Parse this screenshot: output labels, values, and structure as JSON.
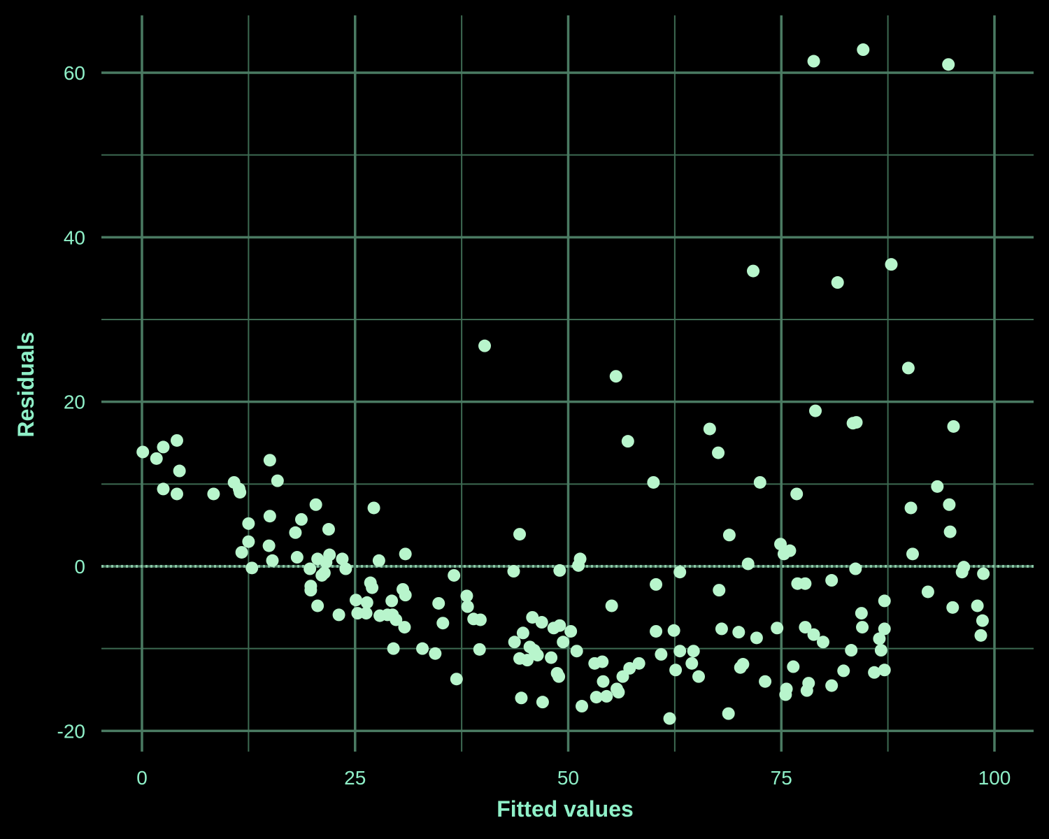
{
  "chart_data": {
    "type": "scatter",
    "title": "",
    "xlabel": "Fitted values",
    "ylabel": "Residuals",
    "xlim": [
      -4.5,
      105
    ],
    "ylim": [
      -22.5,
      67
    ],
    "x_ticks": [
      0,
      25,
      50,
      75,
      100
    ],
    "x_tick_labels": [
      "0",
      "25",
      "50",
      "75",
      "100"
    ],
    "y_ticks": [
      -20,
      0,
      20,
      40,
      60
    ],
    "y_tick_labels": [
      "-20",
      "0",
      "20",
      "40",
      "60"
    ],
    "grid": true,
    "reference_line": {
      "y": 0,
      "style": "dotted"
    },
    "colors": {
      "background": "#000000",
      "grid_major": "#4a7a62",
      "grid_minor": "#3d6a52",
      "points": "#b8f5cc",
      "text": "#8ff0c8",
      "zero_line": "#8ac7a6"
    },
    "points": [
      [
        0.1,
        13.9
      ],
      [
        1.7,
        13.1
      ],
      [
        2.5,
        14.5
      ],
      [
        4.1,
        15.3
      ],
      [
        2.5,
        9.4
      ],
      [
        4.1,
        8.8
      ],
      [
        4.4,
        11.6
      ],
      [
        8.4,
        8.8
      ],
      [
        10.8,
        10.2
      ],
      [
        11.4,
        9.4
      ],
      [
        11.5,
        9.0
      ],
      [
        15.0,
        12.9
      ],
      [
        15.9,
        10.4
      ],
      [
        11.7,
        1.7
      ],
      [
        12.5,
        5.2
      ],
      [
        12.5,
        3.0
      ],
      [
        12.9,
        -0.2
      ],
      [
        15.0,
        6.1
      ],
      [
        14.9,
        2.5
      ],
      [
        15.3,
        0.7
      ],
      [
        18.0,
        4.1
      ],
      [
        18.2,
        1.1
      ],
      [
        18.7,
        5.7
      ],
      [
        19.7,
        -0.3
      ],
      [
        19.8,
        -2.4
      ],
      [
        19.8,
        -2.9
      ],
      [
        20.4,
        7.5
      ],
      [
        20.6,
        0.9
      ],
      [
        20.6,
        -4.8
      ],
      [
        21.1,
        -1.1
      ],
      [
        21.4,
        -0.8
      ],
      [
        21.6,
        0.5
      ],
      [
        21.9,
        4.5
      ],
      [
        22.0,
        1.4
      ],
      [
        23.1,
        -5.9
      ],
      [
        23.5,
        0.9
      ],
      [
        23.9,
        -0.3
      ],
      [
        25.1,
        -4.1
      ],
      [
        25.3,
        -5.7
      ],
      [
        26.3,
        -5.7
      ],
      [
        26.4,
        -4.4
      ],
      [
        26.8,
        -2.0
      ],
      [
        27.0,
        -2.6
      ],
      [
        27.2,
        7.1
      ],
      [
        27.8,
        0.7
      ],
      [
        27.9,
        -6.0
      ],
      [
        28.8,
        -5.9
      ],
      [
        29.3,
        -4.2
      ],
      [
        29.4,
        -5.9
      ],
      [
        29.5,
        -10.0
      ],
      [
        29.8,
        -6.5
      ],
      [
        30.6,
        -2.8
      ],
      [
        30.9,
        -3.5
      ],
      [
        30.8,
        -7.4
      ],
      [
        30.9,
        1.5
      ],
      [
        32.9,
        -10.0
      ],
      [
        34.4,
        -10.6
      ],
      [
        34.8,
        -4.5
      ],
      [
        35.3,
        -6.9
      ],
      [
        36.6,
        -1.1
      ],
      [
        36.9,
        -13.7
      ],
      [
        38.1,
        -3.6
      ],
      [
        38.2,
        -4.9
      ],
      [
        38.9,
        -6.4
      ],
      [
        39.6,
        -10.1
      ],
      [
        39.7,
        -6.5
      ],
      [
        40.2,
        26.8
      ],
      [
        43.6,
        -0.6
      ],
      [
        43.7,
        -9.2
      ],
      [
        44.3,
        -11.2
      ],
      [
        44.3,
        3.9
      ],
      [
        44.5,
        -16.0
      ],
      [
        44.7,
        -8.1
      ],
      [
        45.2,
        -11.4
      ],
      [
        45.5,
        -9.8
      ],
      [
        45.8,
        -6.2
      ],
      [
        46.0,
        -10.2
      ],
      [
        46.4,
        -10.8
      ],
      [
        46.9,
        -6.8
      ],
      [
        47.0,
        -16.5
      ],
      [
        48.0,
        -11.1
      ],
      [
        48.3,
        -7.5
      ],
      [
        48.7,
        -13.0
      ],
      [
        49.0,
        -7.2
      ],
      [
        48.9,
        -13.4
      ],
      [
        49.0,
        -0.5
      ],
      [
        49.4,
        -9.2
      ],
      [
        50.3,
        -7.9
      ],
      [
        51.0,
        -10.3
      ],
      [
        51.2,
        0.1
      ],
      [
        51.4,
        0.9
      ],
      [
        51.6,
        -17.0
      ],
      [
        53.1,
        -11.8
      ],
      [
        53.3,
        -15.9
      ],
      [
        54.0,
        -11.6
      ],
      [
        54.1,
        -14.0
      ],
      [
        54.5,
        -15.8
      ],
      [
        55.1,
        -4.8
      ],
      [
        55.6,
        23.1
      ],
      [
        55.7,
        -14.9
      ],
      [
        55.9,
        -15.3
      ],
      [
        56.4,
        -13.4
      ],
      [
        57.0,
        15.2
      ],
      [
        57.2,
        -12.4
      ],
      [
        58.3,
        -11.8
      ],
      [
        60.0,
        10.2
      ],
      [
        60.3,
        -2.2
      ],
      [
        60.3,
        -7.9
      ],
      [
        60.9,
        -10.7
      ],
      [
        61.9,
        -18.5
      ],
      [
        62.4,
        -7.8
      ],
      [
        62.6,
        -12.6
      ],
      [
        63.1,
        -10.3
      ],
      [
        63.1,
        -0.7
      ],
      [
        64.5,
        -11.8
      ],
      [
        64.7,
        -10.3
      ],
      [
        65.3,
        -13.4
      ],
      [
        66.6,
        16.7
      ],
      [
        67.6,
        13.8
      ],
      [
        67.7,
        -2.9
      ],
      [
        68.0,
        -7.6
      ],
      [
        68.8,
        -17.9
      ],
      [
        68.9,
        3.8
      ],
      [
        70.0,
        -8.0
      ],
      [
        70.2,
        -12.3
      ],
      [
        70.5,
        -11.9
      ],
      [
        71.1,
        0.3
      ],
      [
        71.7,
        35.9
      ],
      [
        72.1,
        -8.7
      ],
      [
        72.5,
        10.2
      ],
      [
        73.1,
        -14.0
      ],
      [
        74.5,
        -7.5
      ],
      [
        74.9,
        2.7
      ],
      [
        75.3,
        1.5
      ],
      [
        75.5,
        -15.6
      ],
      [
        75.6,
        -14.9
      ],
      [
        76.0,
        1.9
      ],
      [
        76.4,
        -12.2
      ],
      [
        76.8,
        8.8
      ],
      [
        76.9,
        -2.1
      ],
      [
        77.8,
        -7.4
      ],
      [
        77.8,
        -2.1
      ],
      [
        78.0,
        -15.1
      ],
      [
        78.2,
        -14.2
      ],
      [
        78.8,
        61.4
      ],
      [
        78.8,
        -8.3
      ],
      [
        79.0,
        18.9
      ],
      [
        79.9,
        -9.2
      ],
      [
        80.9,
        -14.5
      ],
      [
        80.9,
        -1.7
      ],
      [
        81.6,
        34.5
      ],
      [
        82.3,
        -12.7
      ],
      [
        83.2,
        -10.2
      ],
      [
        83.4,
        17.4
      ],
      [
        83.8,
        17.5
      ],
      [
        83.7,
        -0.3
      ],
      [
        84.4,
        -5.7
      ],
      [
        84.5,
        -7.4
      ],
      [
        84.6,
        62.8
      ],
      [
        85.9,
        -12.9
      ],
      [
        86.5,
        -8.8
      ],
      [
        86.7,
        -10.2
      ],
      [
        87.1,
        -4.2
      ],
      [
        87.1,
        -7.6
      ],
      [
        87.1,
        -12.6
      ],
      [
        87.9,
        36.7
      ],
      [
        89.9,
        24.1
      ],
      [
        90.2,
        7.1
      ],
      [
        90.4,
        1.5
      ],
      [
        92.2,
        -3.1
      ],
      [
        93.3,
        9.7
      ],
      [
        94.6,
        61.0
      ],
      [
        94.7,
        7.5
      ],
      [
        94.8,
        4.2
      ],
      [
        95.1,
        -5.0
      ],
      [
        95.2,
        17.0
      ],
      [
        96.2,
        -0.7
      ],
      [
        96.4,
        -0.1
      ],
      [
        98.0,
        -4.8
      ],
      [
        98.4,
        -8.4
      ],
      [
        98.6,
        -6.6
      ],
      [
        98.7,
        -0.9
      ]
    ]
  }
}
